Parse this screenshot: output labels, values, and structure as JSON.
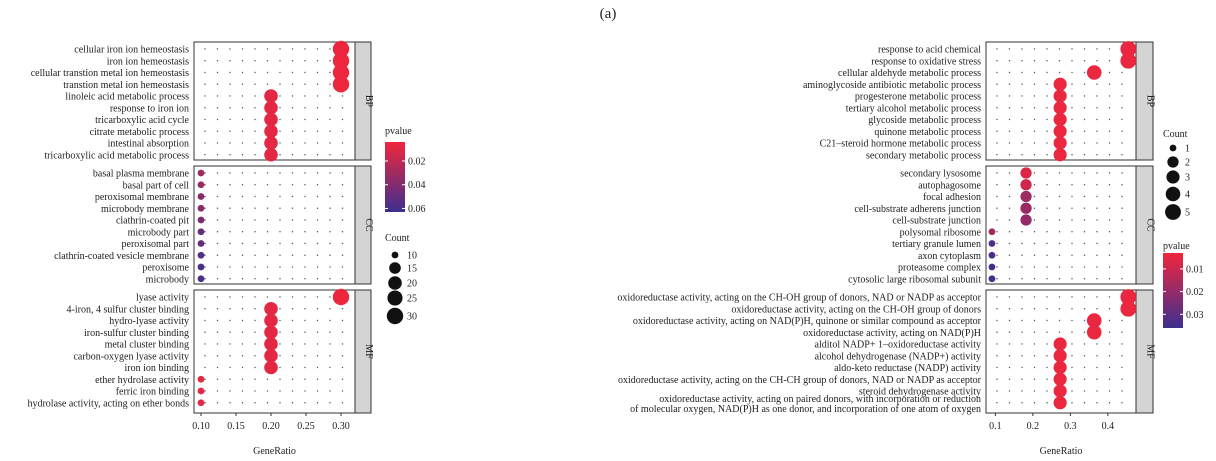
{
  "caption": "(a)",
  "chart_data": [
    {
      "type": "scatter",
      "xlabel": "GeneRatio",
      "xlim": [
        0.09,
        0.32
      ],
      "xticks": [
        0.1,
        0.15,
        0.2,
        0.25,
        0.3
      ],
      "xtick_labels": [
        "0.10",
        "0.15",
        "0.20",
        "0.25",
        "0.30"
      ],
      "facets": [
        {
          "name": "BP",
          "terms": [
            "cellular iron ion hemeostasis",
            "iron ion hemeostasis",
            "cellular transtion metal ion hemeostasis",
            "transtion metal ion hemeostasis",
            "linoleic acid metabolic process",
            "response to iron ion",
            "tricarboxylic acid cycle",
            "citrate metabolic process",
            "intestinal absorption",
            "tricarboxylic acid metabolic process"
          ],
          "x": [
            0.3,
            0.3,
            0.3,
            0.3,
            0.2,
            0.2,
            0.2,
            0.2,
            0.2,
            0.2
          ],
          "count": [
            30,
            30,
            30,
            30,
            20,
            20,
            20,
            20,
            20,
            20
          ],
          "pvalue": [
            0.005,
            0.005,
            0.005,
            0.005,
            0.008,
            0.008,
            0.008,
            0.008,
            0.008,
            0.008
          ]
        },
        {
          "name": "CC",
          "terms": [
            "basal plasma membrane",
            "basal part of cell",
            "peroxisomal membrane",
            "microbody membrane",
            "clathrin-coated pit",
            "microbody part",
            "peroxisomal part",
            "clathrin-coated vesicle membrane",
            "peroxisome",
            "microbody"
          ],
          "x": [
            0.1,
            0.1,
            0.1,
            0.1,
            0.1,
            0.1,
            0.1,
            0.1,
            0.1,
            0.1
          ],
          "count": [
            10,
            10,
            10,
            10,
            10,
            10,
            10,
            10,
            10,
            10
          ],
          "pvalue": [
            0.031,
            0.033,
            0.038,
            0.038,
            0.042,
            0.05,
            0.05,
            0.055,
            0.058,
            0.058
          ]
        },
        {
          "name": "MF",
          "terms": [
            "lyase activity",
            "4-iron, 4 sulfur cluster binding",
            "hydro-lyase activity",
            "iron-sulfur cluster binding",
            "metal cluster binding",
            "carbon-oxygen lyase activity",
            "iron ion binding",
            "ether hydrolase activity",
            "ferric iron binding",
            "hydrolase activity, acting on ether bonds"
          ],
          "x": [
            0.3,
            0.2,
            0.2,
            0.2,
            0.2,
            0.2,
            0.2,
            0.1,
            0.1,
            0.1
          ],
          "count": [
            30,
            20,
            20,
            20,
            20,
            20,
            20,
            10,
            10,
            10
          ],
          "pvalue": [
            0.005,
            0.008,
            0.008,
            0.008,
            0.008,
            0.008,
            0.008,
            0.008,
            0.008,
            0.008
          ]
        }
      ],
      "legend_pvalue": {
        "title": "pvalue",
        "ticks": [
          0.02,
          0.04,
          0.06
        ],
        "tick_labels": [
          "0.02",
          "0.04",
          "0.06"
        ],
        "range": [
          0.004,
          0.063
        ],
        "colors": [
          "#f0263c",
          "#3c2f8f"
        ]
      },
      "legend_count": {
        "title": "Count",
        "values": [
          10,
          15,
          20,
          25,
          30
        ],
        "labels": [
          "10",
          "15",
          "20",
          "25",
          "30"
        ]
      }
    },
    {
      "type": "scatter",
      "xlabel": "GeneRatio",
      "xlim": [
        0.075,
        0.475
      ],
      "xticks": [
        0.1,
        0.2,
        0.3,
        0.4
      ],
      "xtick_labels": [
        "0.1",
        "0.2",
        "0.3",
        "0.4"
      ],
      "facets": [
        {
          "name": "BP",
          "terms": [
            "response to acid chemical",
            "response to oxidative stress",
            "cellular aldehyde metabolic process",
            "aminoglycoside antibiotic metabolic process",
            "progesterone metabolic process",
            "tertiary alcohol metabolic process",
            "glycoside metabolic process",
            "quinone metabolic process",
            "C21–steroid hormone metabolic process",
            "secondary metabolic process"
          ],
          "x": [
            0.4545,
            0.4545,
            0.3636,
            0.2727,
            0.2727,
            0.2727,
            0.2727,
            0.2727,
            0.2727,
            0.2727
          ],
          "count": [
            5,
            5,
            4,
            3,
            3,
            3,
            3,
            3,
            3,
            3
          ],
          "pvalue": [
            0.004,
            0.004,
            0.004,
            0.004,
            0.004,
            0.004,
            0.004,
            0.004,
            0.004,
            0.004
          ]
        },
        {
          "name": "CC",
          "terms": [
            "secondary lysosome",
            "autophagosome",
            "focal adhesion",
            "cell-substrate adherens junction",
            "cell-substrate junction",
            "polysomal ribosome",
            "tertiary granule lumen",
            "axon cytoplasm",
            "proteasome complex",
            "cytosolic large ribosomal subunit"
          ],
          "x": [
            0.1818,
            0.1818,
            0.1818,
            0.1818,
            0.1818,
            0.0909,
            0.0909,
            0.0909,
            0.0909,
            0.0909
          ],
          "count": [
            2,
            2,
            2,
            2,
            2,
            1,
            1,
            1,
            1,
            1
          ],
          "pvalue": [
            0.007,
            0.009,
            0.018,
            0.019,
            0.02,
            0.018,
            0.032,
            0.033,
            0.034,
            0.035
          ]
        },
        {
          "name": "MF",
          "terms": [
            "oxidoreductase activity, acting on the CH-OH group of donors, NAD or NADP as acceptor",
            "oxidoreductase activity, acting on the CH-OH group of donors",
            "oxidoreductase activity, acting on NAD(P)H, quinone or similar compound as acceptor",
            "oxidoreductase activity, acting on NAD(P)H",
            "alditol NADP+ 1–oxidoreductase activity",
            "alcohol dehydrogenase (NADP+) activity",
            "aldo-keto reductase (NADP) activity",
            "oxidoreductase activity, acting on the CH-CH group of donors, NAD or NADP as acceptor",
            "steroid dehydrogenase activity",
            "oxidoreductase activity, acting on paired donors, with incorporation or reduction\nof molecular oxygen, NAD(P)H as one donor, and incorporation of one atom of oxygen"
          ],
          "x": [
            0.4545,
            0.4545,
            0.3636,
            0.3636,
            0.2727,
            0.2727,
            0.2727,
            0.2727,
            0.2727,
            0.2727
          ],
          "count": [
            5,
            5,
            4,
            4,
            3,
            3,
            3,
            3,
            3,
            3
          ],
          "pvalue": [
            0.004,
            0.004,
            0.004,
            0.004,
            0.004,
            0.004,
            0.004,
            0.004,
            0.004,
            0.004
          ]
        }
      ],
      "legend_count": {
        "title": "Count",
        "values": [
          1,
          2,
          3,
          4,
          5
        ],
        "labels": [
          "1",
          "2",
          "3",
          "4",
          "5"
        ]
      },
      "legend_pvalue": {
        "title": "pvalue",
        "ticks": [
          0.01,
          0.02,
          0.03
        ],
        "tick_labels": [
          "0.01",
          "0.02",
          "0.03"
        ],
        "range": [
          0.003,
          0.036
        ],
        "colors": [
          "#f0263c",
          "#3c2f8f"
        ]
      }
    }
  ]
}
